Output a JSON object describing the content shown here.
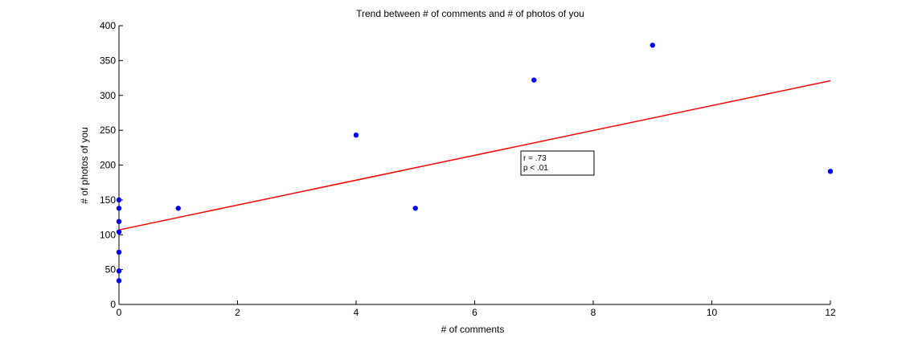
{
  "chart_data": {
    "type": "scatter",
    "title": "Trend between # of comments and # of photos of you",
    "xlabel": "# of comments",
    "ylabel": "# of photos of you",
    "xlim": [
      0,
      12
    ],
    "ylim": [
      0,
      400
    ],
    "xticks": [
      "0",
      "2",
      "4",
      "6",
      "8",
      "10",
      "12"
    ],
    "yticks": [
      "0",
      "50",
      "100",
      "150",
      "200",
      "250",
      "300",
      "350",
      "400"
    ],
    "points": [
      {
        "x": 0,
        "y": 150
      },
      {
        "x": 0,
        "y": 138
      },
      {
        "x": 0,
        "y": 119
      },
      {
        "x": 0,
        "y": 104
      },
      {
        "x": 0,
        "y": 75
      },
      {
        "x": 0,
        "y": 48
      },
      {
        "x": 0,
        "y": 34
      },
      {
        "x": 1,
        "y": 138
      },
      {
        "x": 4,
        "y": 243
      },
      {
        "x": 5,
        "y": 138
      },
      {
        "x": 7,
        "y": 322
      },
      {
        "x": 9,
        "y": 372
      },
      {
        "x": 12,
        "y": 191
      }
    ],
    "fit_line": {
      "x": [
        0,
        12
      ],
      "y": [
        107,
        321
      ]
    },
    "annotation": [
      "r = .73",
      "p < .01"
    ],
    "colors": {
      "points": "#0000ff",
      "fit_line": "#ff0000",
      "axes": "#000000"
    },
    "grid": false,
    "legend": "none"
  }
}
